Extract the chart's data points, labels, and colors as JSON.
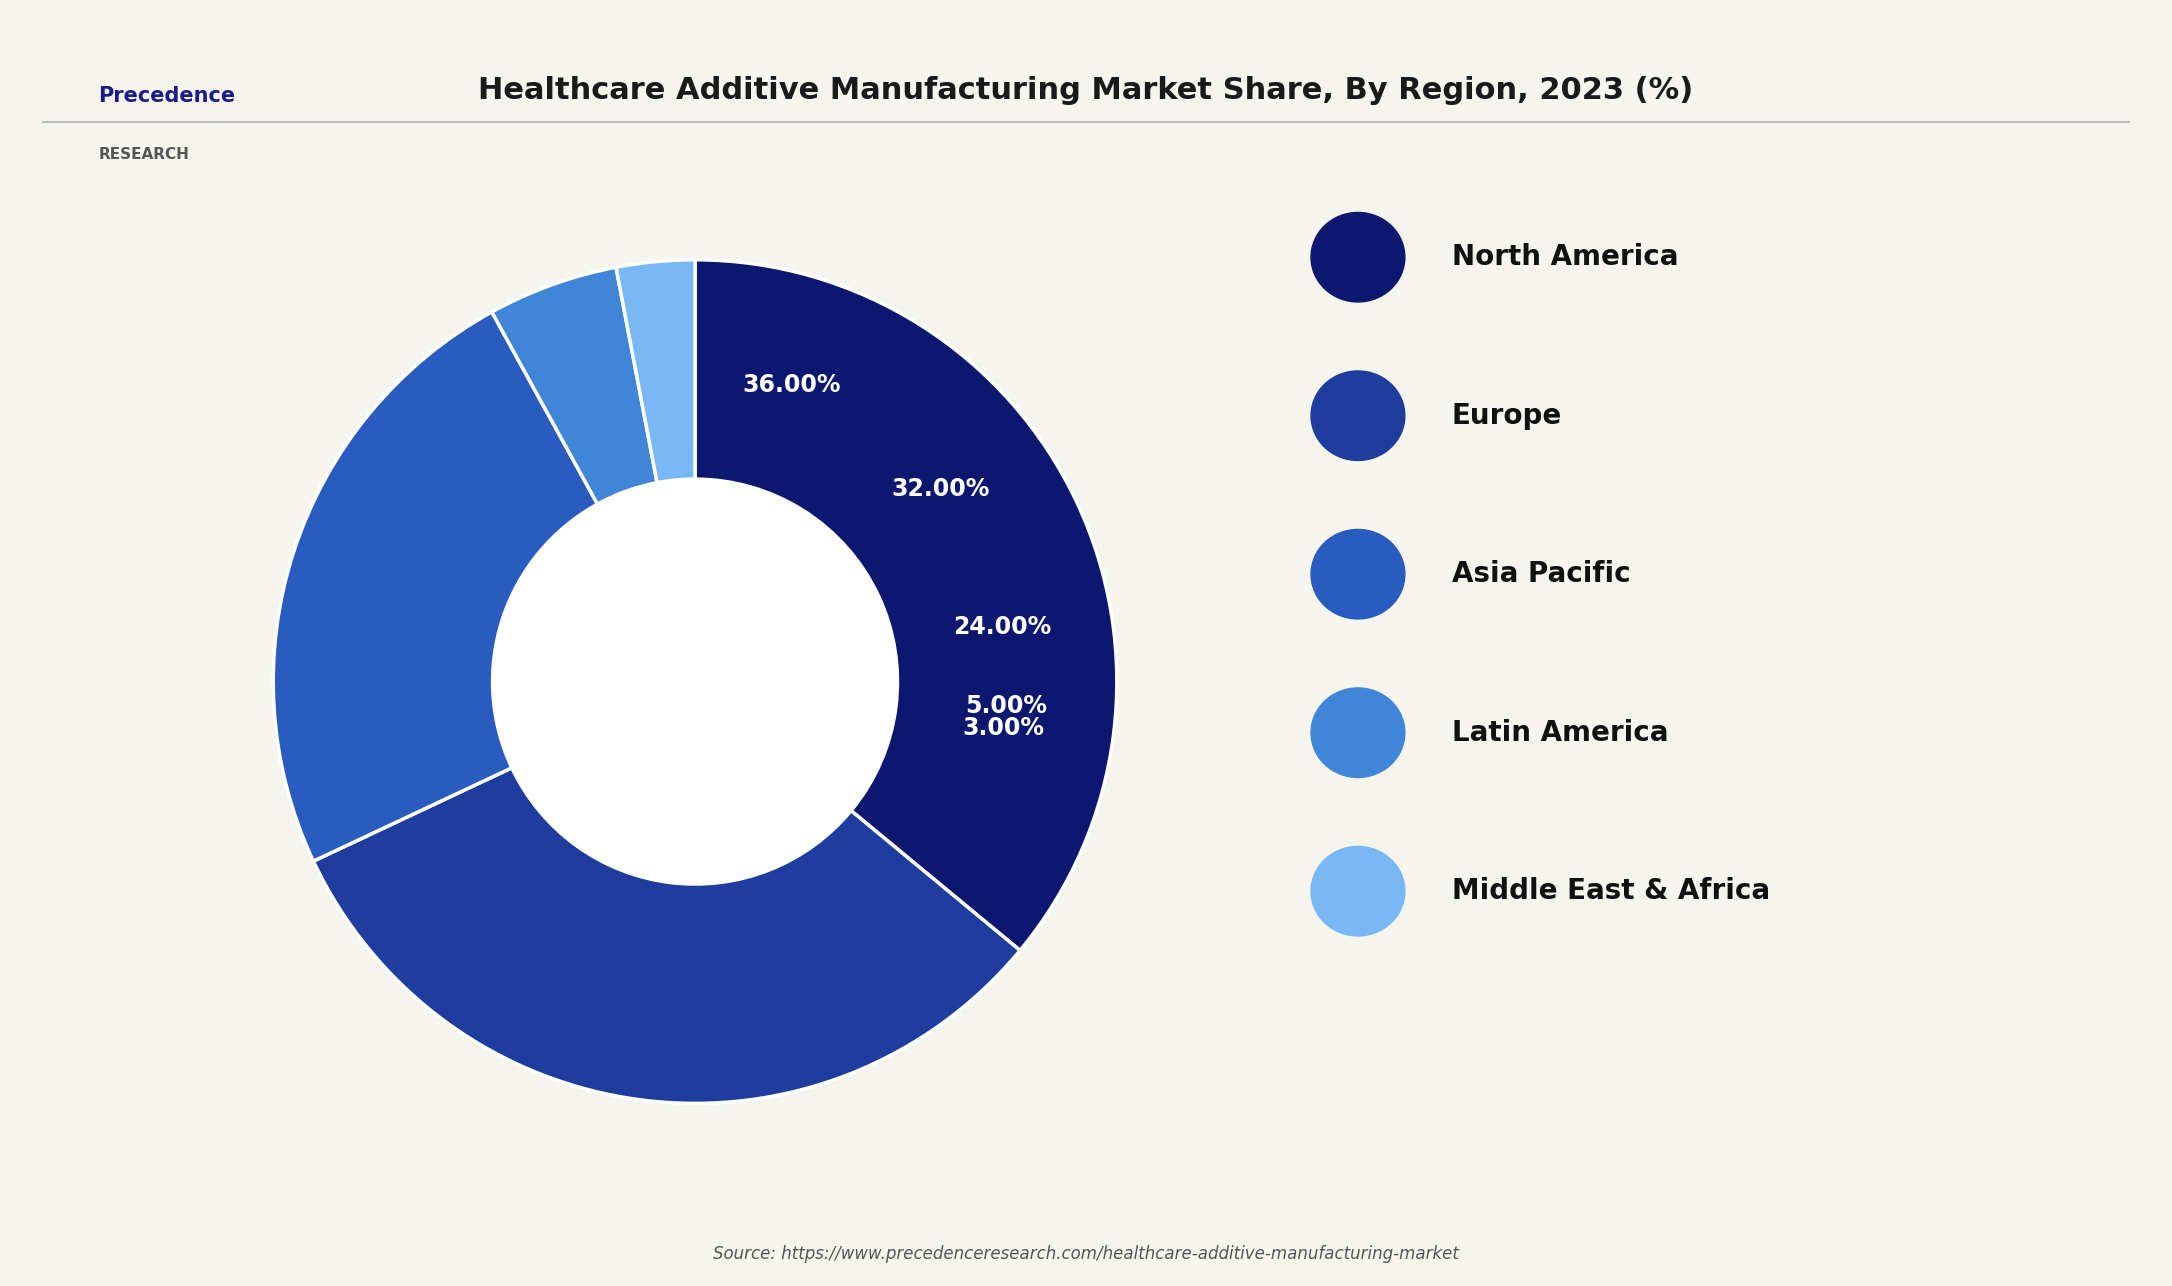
{
  "title": "Healthcare Additive Manufacturing Market Share, By Region, 2023 (%)",
  "labels": [
    "North America",
    "Europe",
    "Asia Pacific",
    "Latin America",
    "Middle East & Africa"
  ],
  "values": [
    36.0,
    32.0,
    24.0,
    5.0,
    3.0
  ],
  "colors": [
    "#0c1870",
    "#1e3d9e",
    "#2a5bbf",
    "#3f85d8",
    "#7ab8f5"
  ],
  "pct_labels": [
    "36.00%",
    "32.00%",
    "24.00%",
    "5.00%",
    "3.00%"
  ],
  "source_text": "Source: https://www.precedenceresearch.com/healthcare-additive-manufacturing-market",
  "background_color": "#f5f5ee",
  "title_fontsize": 22,
  "legend_fontsize": 20,
  "label_fontsize": 17
}
